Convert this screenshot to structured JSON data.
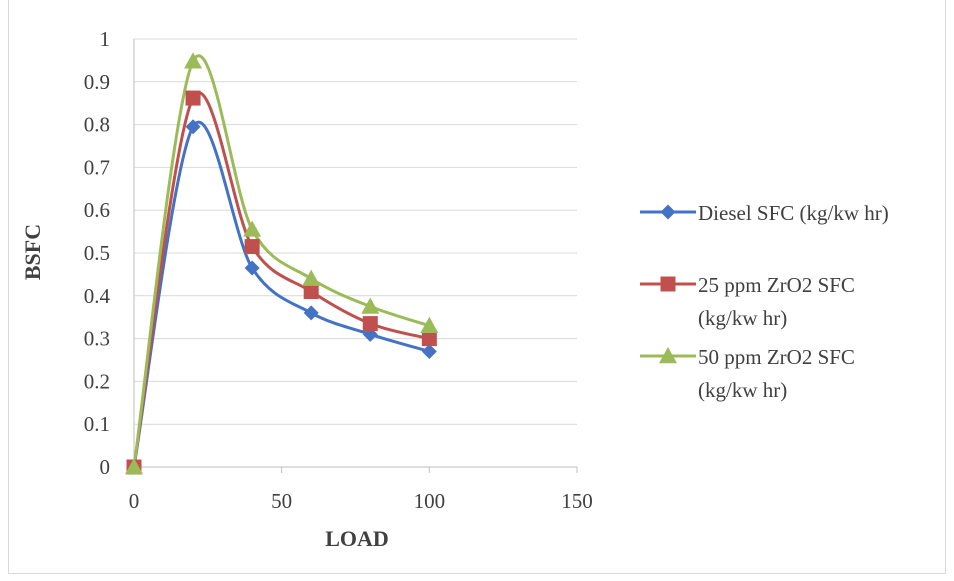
{
  "chart_data": {
    "type": "scatter",
    "xlabel": "LOAD",
    "ylabel": "BSFC",
    "xlim": [
      0,
      150
    ],
    "ylim": [
      0,
      1
    ],
    "xticks": [
      0,
      50,
      100,
      150
    ],
    "yticks": [
      0,
      0.1,
      0.2,
      0.3,
      0.4,
      0.5,
      0.6,
      0.7,
      0.8,
      0.9,
      1
    ],
    "grid": "horizontal",
    "legend_position": "right",
    "smooth_lines": true,
    "series": [
      {
        "name": "Diesel SFC (kg/kw hr)",
        "legend_lines": [
          "Diesel SFC (kg/kw hr)"
        ],
        "color": "#4472c4",
        "marker": "diamond",
        "x": [
          0,
          20,
          40,
          60,
          80,
          100
        ],
        "y": [
          0,
          0.795,
          0.465,
          0.36,
          0.31,
          0.27
        ]
      },
      {
        "name": "25 ppm ZrO2 SFC (kg/kw hr)",
        "legend_lines": [
          "25 ppm ZrO2 SFC",
          "(kg/kw hr)"
        ],
        "color": "#c0504d",
        "marker": "square",
        "x": [
          0,
          20,
          40,
          60,
          80,
          100
        ],
        "y": [
          0,
          0.862,
          0.515,
          0.41,
          0.335,
          0.3
        ]
      },
      {
        "name": "50 ppm ZrO2 SFC (kg/kw hr)",
        "legend_lines": [
          "50 ppm ZrO2 SFC",
          "(kg/kw hr)"
        ],
        "color": "#9bbb59",
        "marker": "triangle",
        "x": [
          0,
          20,
          40,
          60,
          80,
          100
        ],
        "y": [
          0,
          0.948,
          0.555,
          0.44,
          0.375,
          0.33
        ]
      }
    ]
  }
}
